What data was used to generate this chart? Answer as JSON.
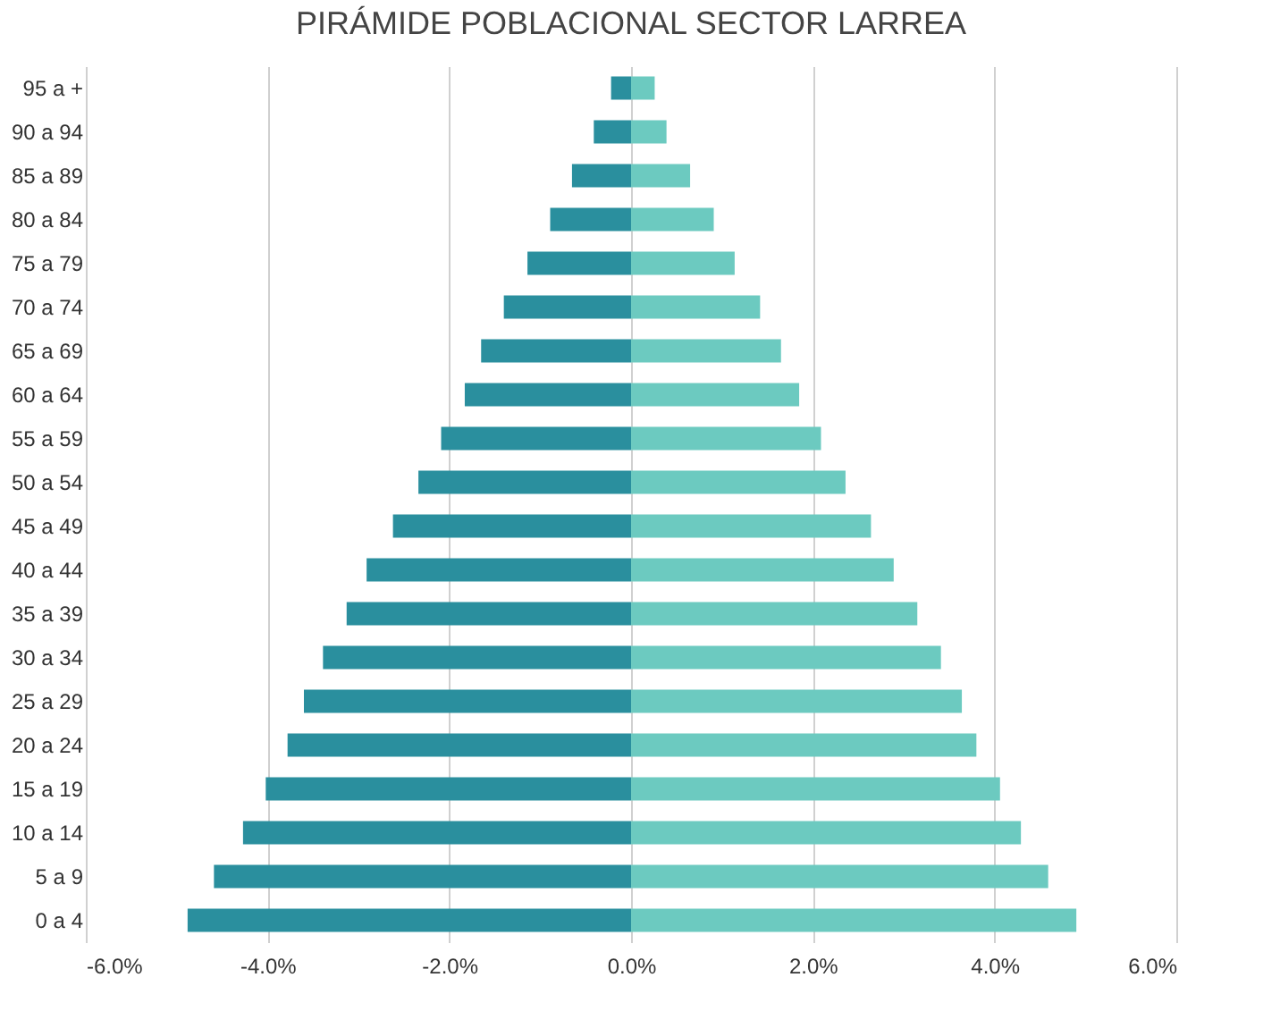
{
  "chart_data": {
    "type": "bar",
    "orientation": "horizontal",
    "title": "PIRÁMIDE POBLACIONAL SECTOR LARREA",
    "categories": [
      "95 a +",
      "90 a 94",
      "85 a 89",
      "80 a 84",
      "75 a 79",
      "70 a 74",
      "65 a 69",
      "60 a 64",
      "55 a 59",
      "50 a 54",
      "45 a 49",
      "40 a 44",
      "35 a 39",
      "30 a 34",
      "25 a 29",
      "20 a 24",
      "15 a 19",
      "10 a 14",
      "5 a 9",
      "0 a 4"
    ],
    "series": [
      {
        "color": "#2a8f9e",
        "values": [
          -0.22,
          -0.41,
          -0.65,
          -0.89,
          -1.14,
          -1.4,
          -1.65,
          -1.83,
          -2.09,
          -2.34,
          -2.62,
          -2.91,
          -3.13,
          -3.39,
          -3.6,
          -3.78,
          -4.02,
          -4.27,
          -4.59,
          -4.88
        ]
      },
      {
        "color": "#6ccac0",
        "values": [
          0.26,
          0.39,
          0.65,
          0.91,
          1.14,
          1.42,
          1.65,
          1.85,
          2.09,
          2.36,
          2.64,
          2.89,
          3.15,
          3.41,
          3.64,
          3.8,
          4.06,
          4.29,
          4.59,
          4.9
        ]
      }
    ],
    "xlim": [
      -6,
      6
    ],
    "xticks": [
      {
        "value": -6,
        "label": "-6.0%"
      },
      {
        "value": -4,
        "label": "-4.0%"
      },
      {
        "value": -2,
        "label": "-2.0%"
      },
      {
        "value": 0,
        "label": "0.0%"
      },
      {
        "value": 2,
        "label": "2.0%"
      },
      {
        "value": 4,
        "label": "4.0%"
      },
      {
        "value": 6,
        "label": "6.0%"
      }
    ],
    "grid": "x",
    "legend": false,
    "stacked": true
  }
}
